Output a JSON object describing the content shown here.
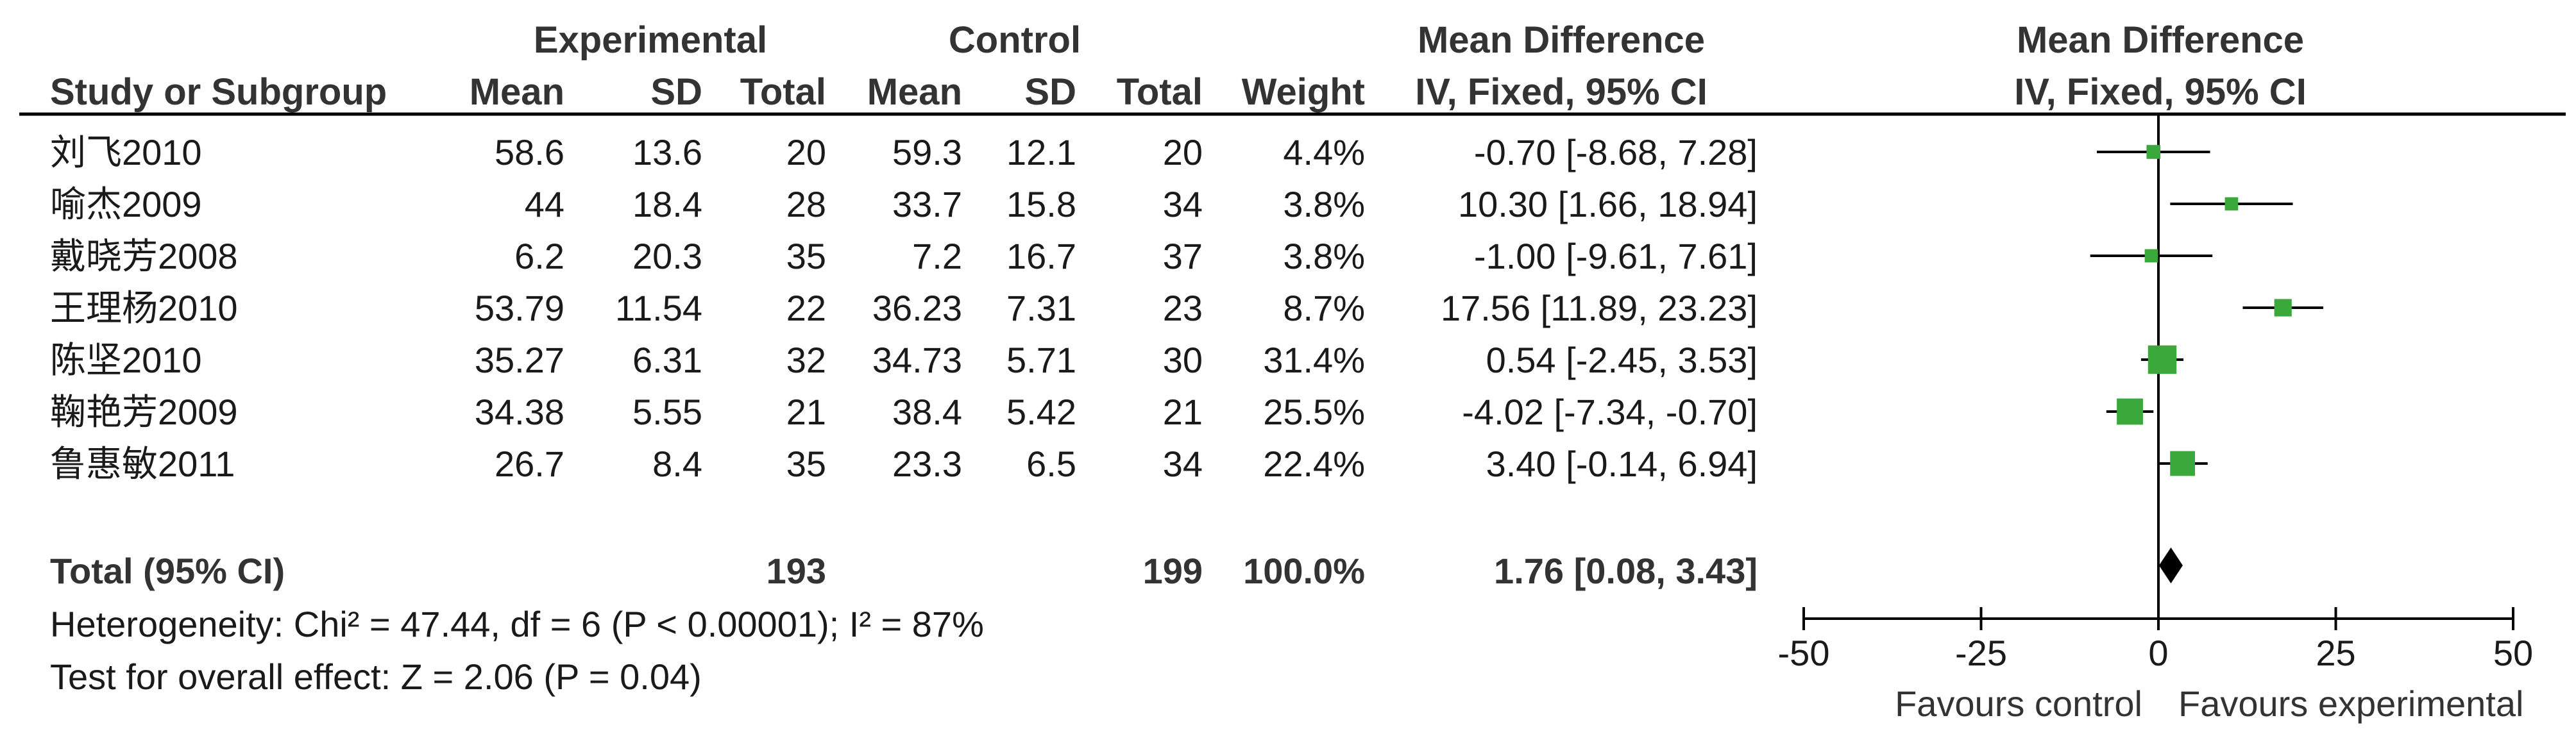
{
  "headers": {
    "experimental": "Experimental",
    "control": "Control",
    "mean_difference_left": "Mean Difference",
    "mean_difference_right": "Mean Difference",
    "study_or_subgroup": "Study or Subgroup",
    "exp_mean": "Mean",
    "exp_sd": "SD",
    "exp_total": "Total",
    "ctl_mean": "Mean",
    "ctl_sd": "SD",
    "ctl_total": "Total",
    "weight": "Weight",
    "method_left": "IV, Fixed, 95% CI",
    "method_right": "IV, Fixed, 95% CI"
  },
  "total_row": {
    "label": "Total (95% CI)",
    "exp_total": "193",
    "ctl_total": "199",
    "weight": "100.0%",
    "ci_text": "1.76 [0.08, 3.43]"
  },
  "footer": {
    "heterogeneity": "Heterogeneity: Chi² = 47.44, df = 6 (P < 0.00001); I² = 87%",
    "overall_effect": "Test for overall effect: Z = 2.06 (P = 0.04)"
  },
  "axis": {
    "favours_left": "Favours control",
    "favours_right": "Favours experimental"
  },
  "colors": {
    "square": "#3aa83a",
    "diamond": "#000000",
    "lines": "#000000"
  },
  "chart_data": {
    "type": "forest",
    "studies": [
      {
        "name": "刘飞2010",
        "exp_mean": "58.6",
        "exp_sd": "13.6",
        "exp_n": "20",
        "ctl_mean": "59.3",
        "ctl_sd": "12.1",
        "ctl_n": "20",
        "weight_text": "4.4%",
        "ci_text": "-0.70 [-8.68, 7.28]",
        "md": -0.7,
        "lower": -8.68,
        "upper": 7.28,
        "weight": 4.4
      },
      {
        "name": "喻杰2009",
        "exp_mean": "44",
        "exp_sd": "18.4",
        "exp_n": "28",
        "ctl_mean": "33.7",
        "ctl_sd": "15.8",
        "ctl_n": "34",
        "weight_text": "3.8%",
        "ci_text": "10.30 [1.66, 18.94]",
        "md": 10.3,
        "lower": 1.66,
        "upper": 18.94,
        "weight": 3.8
      },
      {
        "name": "戴晓芳2008",
        "exp_mean": "6.2",
        "exp_sd": "20.3",
        "exp_n": "35",
        "ctl_mean": "7.2",
        "ctl_sd": "16.7",
        "ctl_n": "37",
        "weight_text": "3.8%",
        "ci_text": "-1.00 [-9.61, 7.61]",
        "md": -1.0,
        "lower": -9.61,
        "upper": 7.61,
        "weight": 3.8
      },
      {
        "name": "王理杨2010",
        "exp_mean": "53.79",
        "exp_sd": "11.54",
        "exp_n": "22",
        "ctl_mean": "36.23",
        "ctl_sd": "7.31",
        "ctl_n": "23",
        "weight_text": "8.7%",
        "ci_text": "17.56 [11.89, 23.23]",
        "md": 17.56,
        "lower": 11.89,
        "upper": 23.23,
        "weight": 8.7
      },
      {
        "name": "陈坚2010",
        "exp_mean": "35.27",
        "exp_sd": "6.31",
        "exp_n": "32",
        "ctl_mean": "34.73",
        "ctl_sd": "5.71",
        "ctl_n": "30",
        "weight_text": "31.4%",
        "ci_text": "0.54 [-2.45, 3.53]",
        "md": 0.54,
        "lower": -2.45,
        "upper": 3.53,
        "weight": 31.4
      },
      {
        "name": "鞠艳芳2009",
        "exp_mean": "34.38",
        "exp_sd": "5.55",
        "exp_n": "21",
        "ctl_mean": "38.4",
        "ctl_sd": "5.42",
        "ctl_n": "21",
        "weight_text": "25.5%",
        "ci_text": "-4.02 [-7.34, -0.70]",
        "md": -4.02,
        "lower": -7.34,
        "upper": -0.7,
        "weight": 25.5
      },
      {
        "name": "鲁惠敏2011",
        "exp_mean": "26.7",
        "exp_sd": "8.4",
        "exp_n": "35",
        "ctl_mean": "23.3",
        "ctl_sd": "6.5",
        "ctl_n": "34",
        "weight_text": "22.4%",
        "ci_text": "3.40 [-0.14, 6.94]",
        "md": 3.4,
        "lower": -0.14,
        "upper": 6.94,
        "weight": 22.4
      }
    ],
    "pooled": {
      "md": 1.76,
      "lower": 0.08,
      "upper": 3.43
    },
    "xlim": [
      -50,
      50
    ],
    "ticks": [
      -50,
      -25,
      0,
      25,
      50
    ]
  }
}
